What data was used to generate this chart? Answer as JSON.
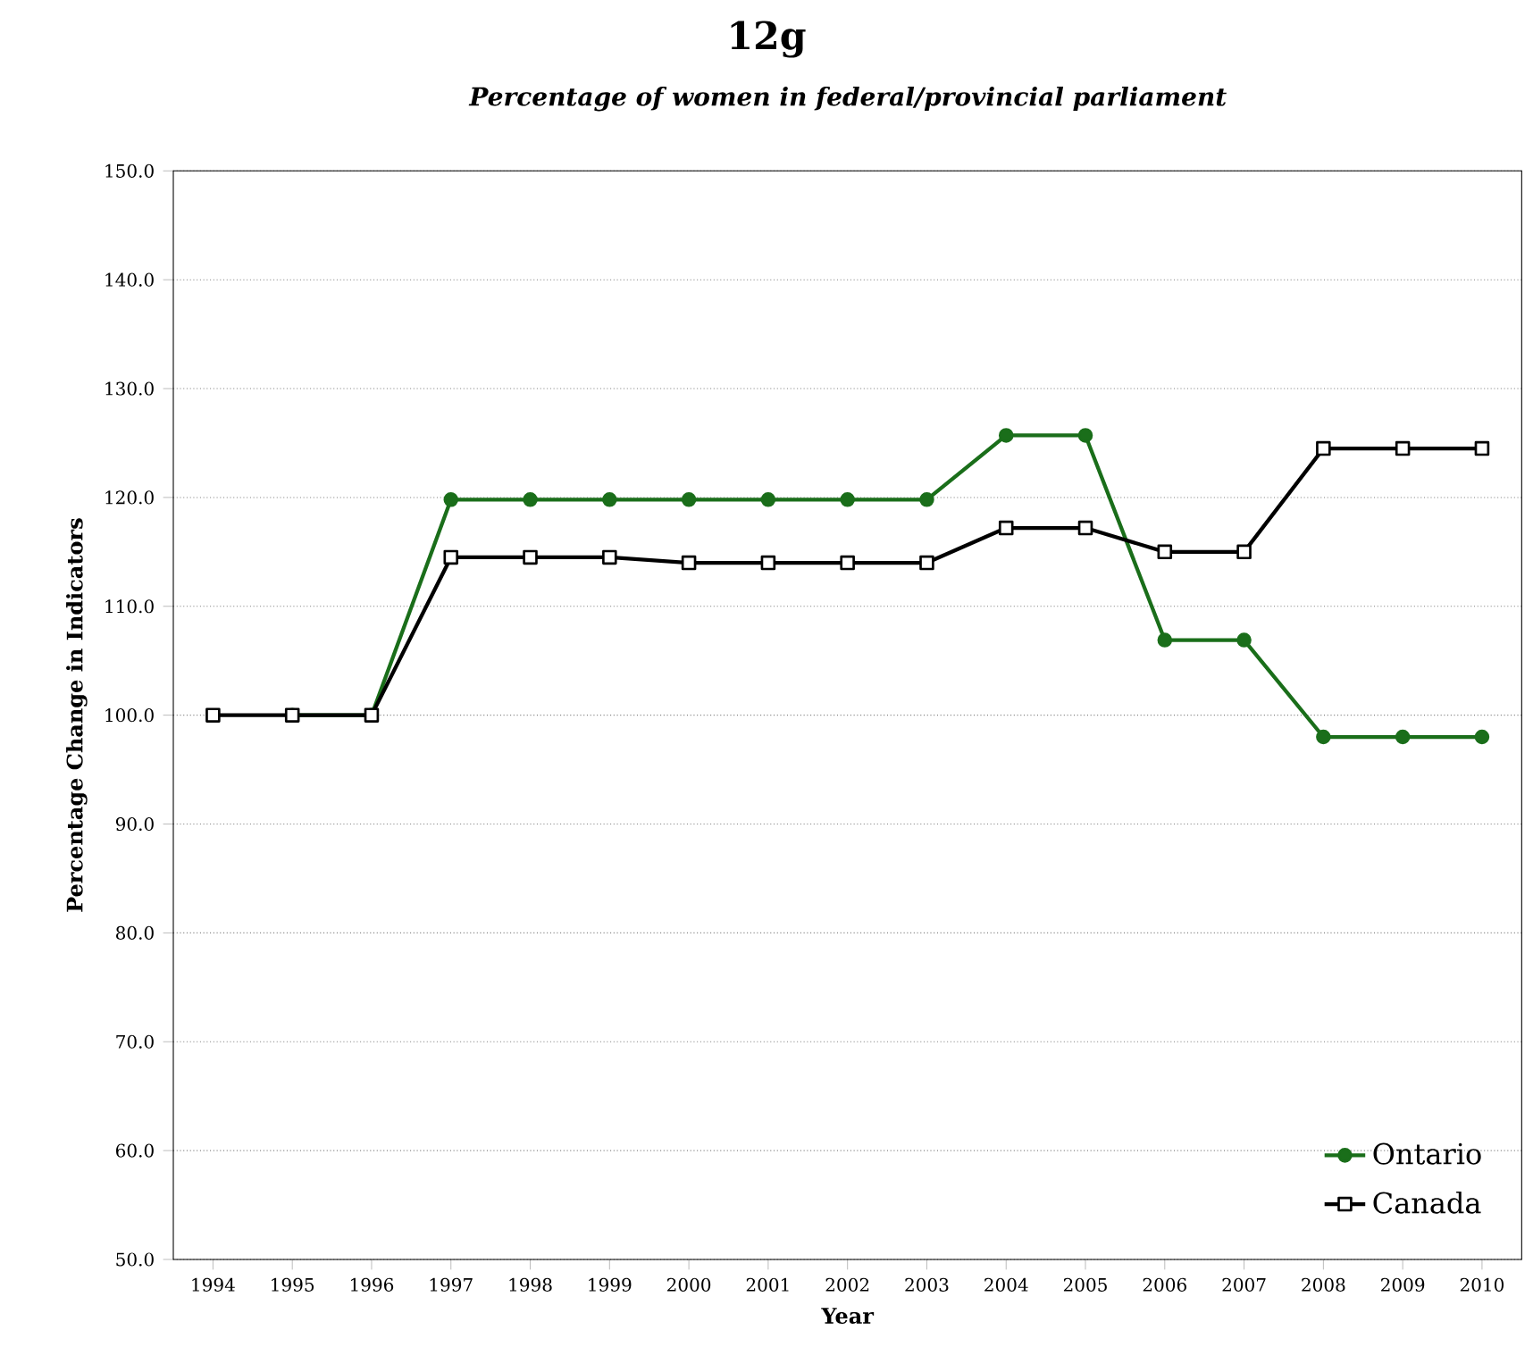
{
  "chart_data": {
    "type": "line",
    "title": "12g",
    "subtitle": "Percentage of women in federal/provincial parliament",
    "xlabel": "Year",
    "ylabel": "Percentage Change in Indicators",
    "categories": [
      "1994",
      "1995",
      "1996",
      "1997",
      "1998",
      "1999",
      "2000",
      "2001",
      "2002",
      "2003",
      "2004",
      "2005",
      "2006",
      "2007",
      "2008",
      "2009",
      "2010"
    ],
    "series": [
      {
        "name": "Ontario",
        "color": "#1a6e1a",
        "marker": "circle",
        "values": [
          null,
          100,
          100,
          119.8,
          119.8,
          119.8,
          119.8,
          119.8,
          119.8,
          119.8,
          125.7,
          125.7,
          106.9,
          106.9,
          98,
          98,
          98
        ]
      },
      {
        "name": "Canada",
        "color": "#000000",
        "marker": "square",
        "values": [
          100,
          100,
          100,
          114.5,
          114.5,
          114.5,
          114,
          114,
          114,
          114,
          117.2,
          117.2,
          115,
          115,
          124.5,
          124.5,
          124.5
        ]
      }
    ],
    "ylim": [
      50,
      150
    ],
    "yticks": [
      {
        "value": 50,
        "label": "50.0"
      },
      {
        "value": 60,
        "label": "60.0"
      },
      {
        "value": 70,
        "label": "70.0"
      },
      {
        "value": 80,
        "label": "80.0"
      },
      {
        "value": 90,
        "label": "90.0"
      },
      {
        "value": 100,
        "label": "100.0"
      },
      {
        "value": 110,
        "label": "110.0"
      },
      {
        "value": 120,
        "label": "120.0"
      },
      {
        "value": 130,
        "label": "130.0"
      },
      {
        "value": 140,
        "label": "140.0"
      },
      {
        "value": 150,
        "label": "150.0"
      }
    ],
    "grid": "y",
    "legend": "bottom right",
    "line_style": "solid"
  }
}
